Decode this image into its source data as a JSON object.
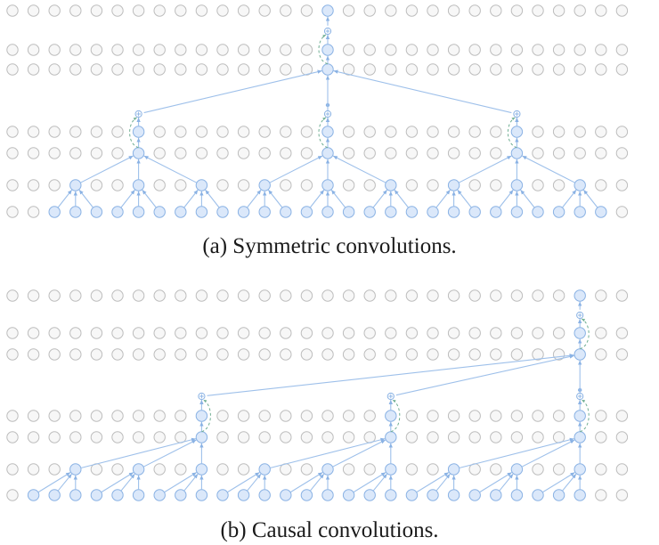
{
  "captions": {
    "symmetric": "(a) Symmetric convolutions.",
    "causal": "(b) Causal convolutions."
  },
  "colors": {
    "inactive_fill": "#f7f7f7",
    "inactive_stroke": "#bdbdbd",
    "active_fill": "#dbe8fa",
    "active_stroke": "#8ab2e4",
    "edge": "#9ec0ea",
    "residual": "#6fae92",
    "plus_fill": "#ffffff"
  },
  "icons": {
    "node": "circle",
    "add_node": "circled-plus-icon",
    "arrow": "arrowhead-icon"
  }
}
